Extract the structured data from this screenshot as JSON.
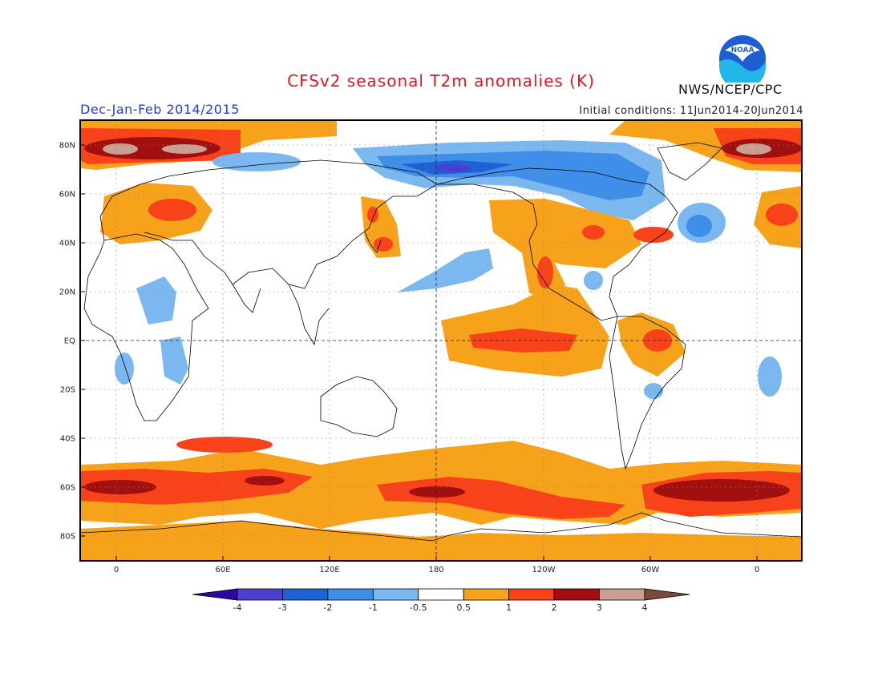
{
  "title": "CFSv2 seasonal T2m anomalies (K)",
  "period": "Dec-Jan-Feb 2014/2015",
  "initial_conditions": "Initial conditions: 11Jun2014-20Jun2014",
  "agency": "NWS/NCEP/CPC",
  "logo_text": "NOAA",
  "lat_ticks": [
    "80N",
    "60N",
    "40N",
    "20N",
    "EQ",
    "20S",
    "40S",
    "60S",
    "80S"
  ],
  "lon_ticks": [
    "0",
    "60E",
    "120E",
    "180",
    "120W",
    "60W",
    "0"
  ],
  "colorbar": {
    "labels": [
      "-4",
      "-3",
      "-2",
      "-1",
      "-0.5",
      "0.5",
      "1",
      "2",
      "3",
      "4"
    ],
    "colors": [
      "#2a0a9b",
      "#4b3fd0",
      "#1f62d4",
      "#3f8ee8",
      "#7cb8f0",
      "#ffffff",
      "#f7a21b",
      "#f8431a",
      "#a10f0f",
      "#c9a08f",
      "#7a4a3a"
    ]
  },
  "colors": {
    "title": "#e8141c",
    "period": "#1e3fd0",
    "warm_05_1": "#f7a21b",
    "warm_1_2": "#f8431a",
    "warm_2_3": "#a10f0f",
    "warm_3_4": "#c9a08f",
    "cool_05_1": "#7cb8f0",
    "cool_1_2": "#3f8ee8",
    "cool_2_3": "#1f62d4",
    "cool_3_4": "#4b3fd0"
  }
}
